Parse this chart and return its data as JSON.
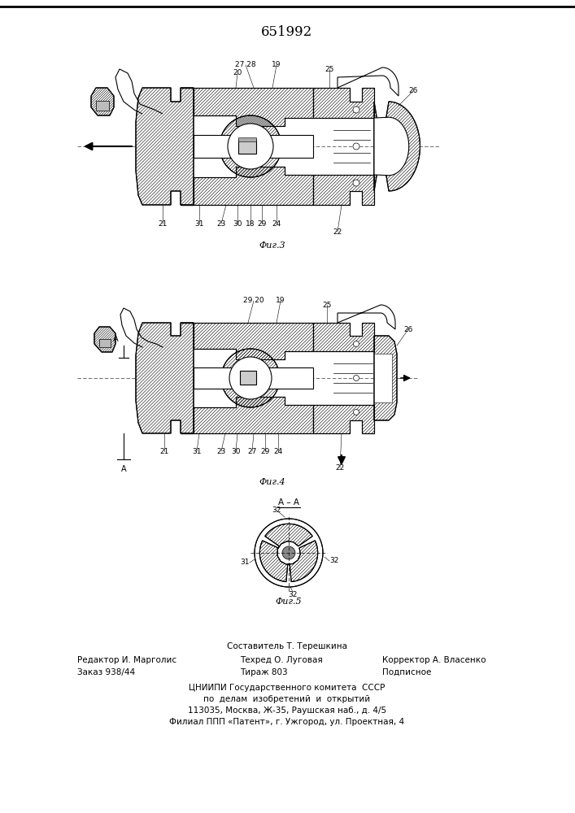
{
  "title": "651992",
  "title_fontsize": 12,
  "bg_color": "#ffffff",
  "fig1_label": "Фиг.3",
  "fig2_label": "Фиг.4",
  "fig3_label": "Фиг.5",
  "fig3_title": "А – А",
  "footer_line1": "Составитель Т. Терешкина",
  "footer_line2_left": "Редактор И. Марголис",
  "footer_line2_mid": "Техред О. Луговая",
  "footer_line2_right": "Корректор А. Власенко",
  "footer_line3_left": "Заказ 938/44",
  "footer_line3_mid": "Тираж 803",
  "footer_line3_right": "Подписное",
  "footer_line4": "ЦНИИПИ Государственного комитета  СССР",
  "footer_line5": "по  делам  изобретений  и  открытий",
  "footer_line6": "113035, Москва, Ж-35, Раушская наб., д. 4/5",
  "footer_line7": "Филиал ППП «Патент», г. Ужгород, ул. Проектная, 4"
}
